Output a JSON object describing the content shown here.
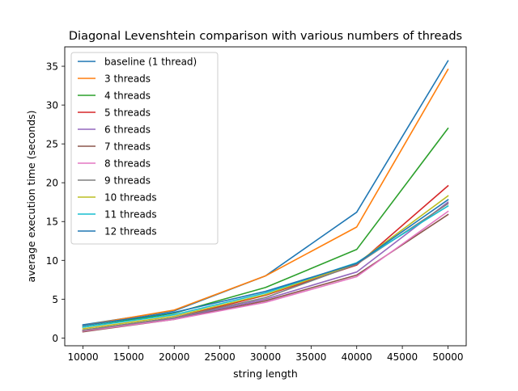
{
  "chart_data": {
    "type": "line",
    "title": "Diagonal Levenshtein comparison with various numbers of threads",
    "xlabel": "string length",
    "ylabel": "average execution time (seconds)",
    "xlim": [
      8000,
      52000
    ],
    "ylim": [
      -1.0,
      37.5
    ],
    "xticks": [
      10000,
      15000,
      20000,
      25000,
      30000,
      35000,
      40000,
      45000,
      50000
    ],
    "yticks": [
      0,
      5,
      10,
      15,
      20,
      25,
      30,
      35
    ],
    "grid": false,
    "legend_position": "upper left",
    "x": [
      10000,
      20000,
      30000,
      40000,
      50000
    ],
    "series": [
      {
        "name": "baseline (1 thread)",
        "color": "#1f77b4",
        "values": [
          1.7,
          3.5,
          8.0,
          16.2,
          35.7
        ]
      },
      {
        "name": "3 threads",
        "color": "#ff7f0e",
        "values": [
          1.6,
          3.6,
          8.0,
          14.3,
          34.6
        ]
      },
      {
        "name": "4 threads",
        "color": "#2ca02c",
        "values": [
          1.4,
          3.2,
          6.5,
          11.4,
          27.0
        ]
      },
      {
        "name": "5 threads",
        "color": "#d62728",
        "values": [
          1.0,
          2.6,
          5.5,
          9.4,
          19.6
        ]
      },
      {
        "name": "6 threads",
        "color": "#9467bd",
        "values": [
          0.9,
          2.5,
          5.0,
          8.5,
          17.5
        ]
      },
      {
        "name": "7 threads",
        "color": "#8c564b",
        "values": [
          0.8,
          2.4,
          4.8,
          8.1,
          15.9
        ]
      },
      {
        "name": "8 threads",
        "color": "#e377c2",
        "values": [
          0.9,
          2.4,
          4.6,
          7.9,
          16.3
        ]
      },
      {
        "name": "9 threads",
        "color": "#7f7f7f",
        "values": [
          1.0,
          2.6,
          5.2,
          9.5,
          17.3
        ]
      },
      {
        "name": "10 threads",
        "color": "#bcbd22",
        "values": [
          1.2,
          2.8,
          5.6,
          9.6,
          18.3
        ]
      },
      {
        "name": "11 threads",
        "color": "#17becf",
        "values": [
          1.4,
          3.0,
          5.8,
          9.7,
          17.0
        ]
      },
      {
        "name": "12 threads",
        "color": "#1f77b4",
        "values": [
          1.6,
          3.3,
          6.0,
          9.6,
          17.8
        ]
      }
    ]
  }
}
